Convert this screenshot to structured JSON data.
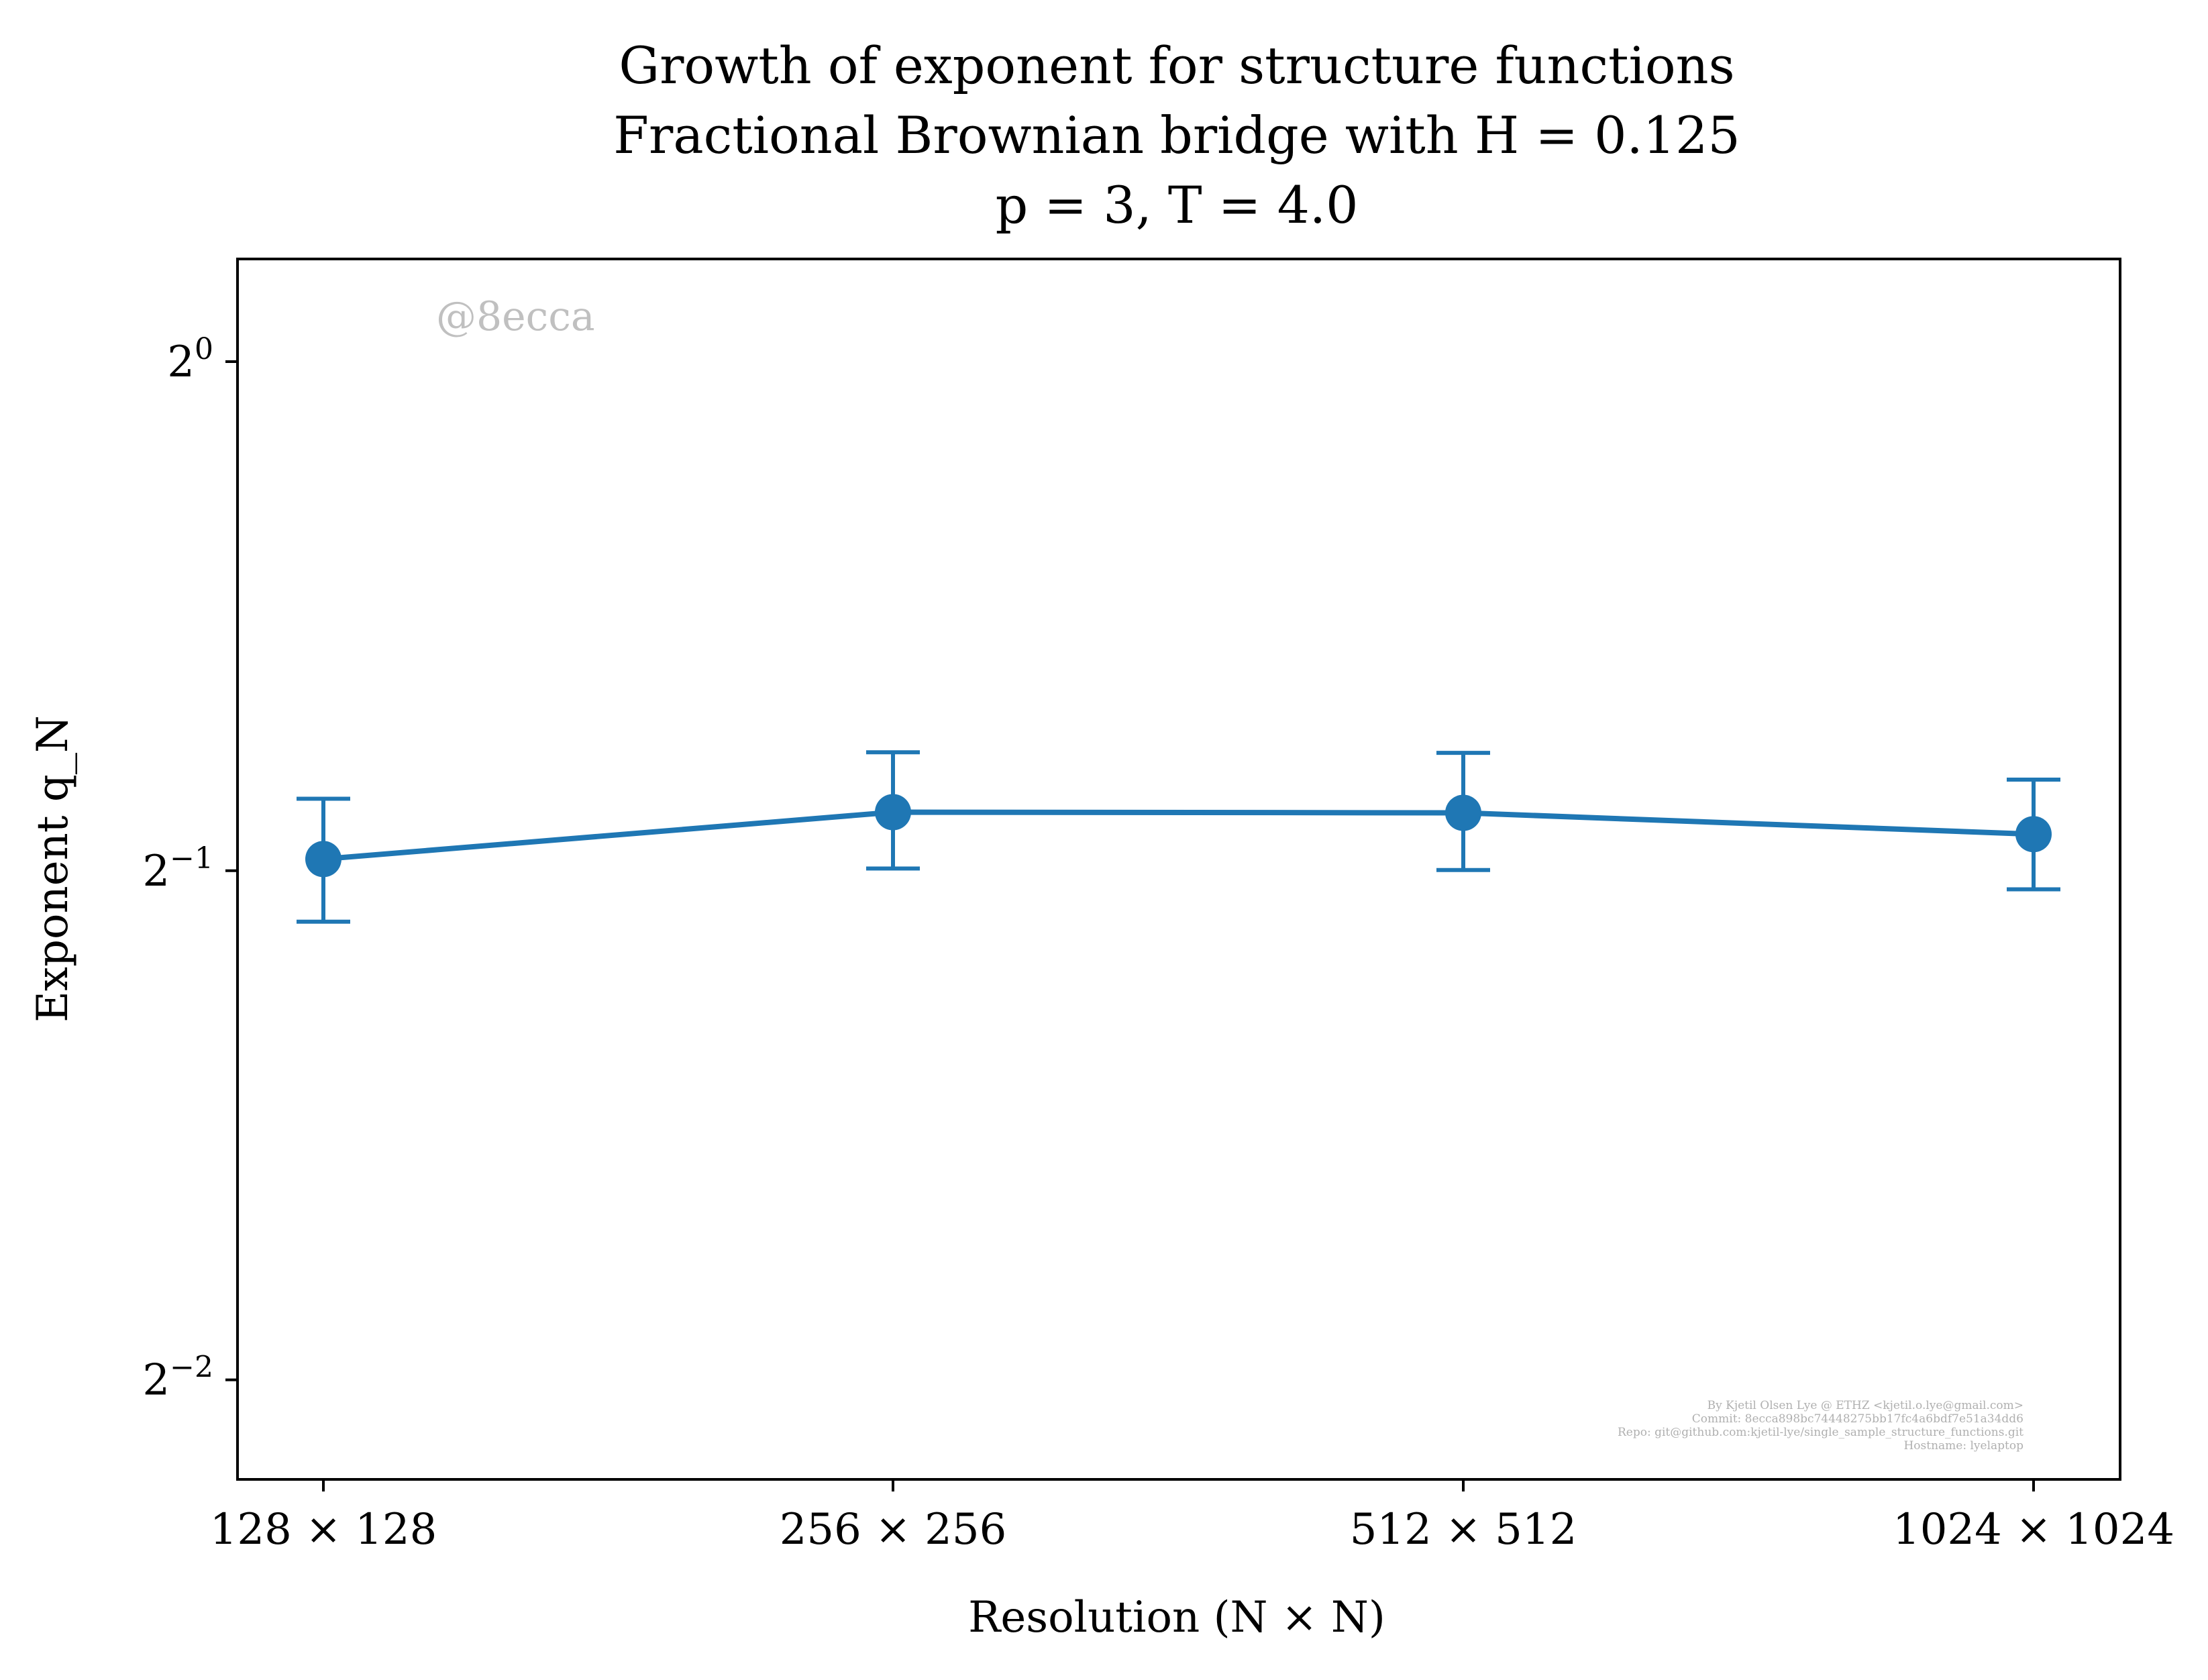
{
  "chart_data": {
    "type": "line",
    "title_lines": [
      "Growth of exponent for structure functions",
      "Fractional Brownian bridge with H = 0.125",
      "p = 3, T = 4.0"
    ],
    "xlabel": "Resolution (N × N)",
    "ylabel": "Exponent q_N",
    "categories": [
      "128 × 128",
      "256 × 256",
      "512 × 512",
      "1024 × 1024"
    ],
    "y_scale": "log2",
    "y_ticks": [
      {
        "base": "2",
        "exp": "0",
        "value": 1.0
      },
      {
        "base": "2",
        "exp": "−1",
        "value": 0.5
      },
      {
        "base": "2",
        "exp": "−2",
        "value": 0.25
      }
    ],
    "ylim": [
      0.2183,
      1.15
    ],
    "series": [
      {
        "values": [
          0.508,
          0.5415,
          0.541,
          0.5255
        ],
        "err_low": [
          0.4665,
          0.5015,
          0.5005,
          0.4875
        ],
        "err_high": [
          0.5515,
          0.5875,
          0.587,
          0.566
        ]
      }
    ],
    "color": "#1f77b4",
    "grid": false,
    "watermark": "@8ecca",
    "credits": [
      "By Kjetil Olsen Lye @ ETHZ <kjetil.o.lye@gmail.com>",
      "Commit: 8ecca898bc74448275bb17fc4a6bdf7e51a34dd6",
      "Repo: git@github.com:kjetil-lye/single_sample_structure_functions.git",
      "Hostname: lyelaptop"
    ]
  }
}
